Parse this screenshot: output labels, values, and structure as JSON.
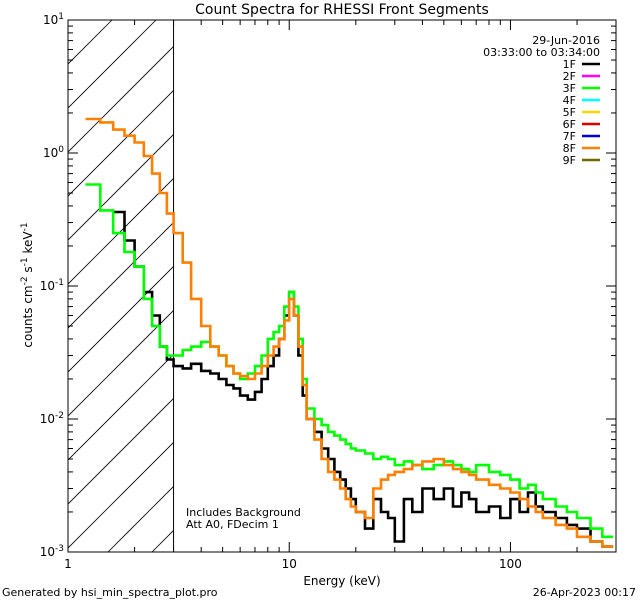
{
  "chart_data": {
    "type": "line",
    "title": "Count Spectra for RHESSI Front Segments",
    "xlabel": "Energy (keV)",
    "ylabel_base": "counts cm",
    "ylabel_exp1": "-2",
    "ylabel_mid": " s",
    "ylabel_exp2": "-1",
    "ylabel_unit": " keV",
    "ylabel_exp3": "-1",
    "xscale": "log",
    "yscale": "log",
    "xlim": [
      1,
      300
    ],
    "ylim": [
      0.001,
      10
    ],
    "x_major_ticks": [
      1,
      10,
      100
    ],
    "y_major_ticks": [
      0.001,
      0.01,
      0.1,
      1,
      10
    ],
    "x_tick_labels": [
      "1",
      "10",
      "100"
    ],
    "y_tick_base": [
      "10",
      "10",
      "10",
      "10",
      "10"
    ],
    "y_tick_exp": [
      "-3",
      "-2",
      "-1",
      "0",
      "1"
    ],
    "shaded_region_x": [
      1,
      3
    ],
    "info": {
      "date": "29-Jun-2016",
      "time_range": "03:33:00 to 03:34:00",
      "note1": "Includes Background",
      "note2": "Att A0, FDecim 1"
    },
    "legend": [
      {
        "name": "1F",
        "color": "#000000"
      },
      {
        "name": "2F",
        "color": "#ff00ff"
      },
      {
        "name": "3F",
        "color": "#00ff00"
      },
      {
        "name": "4F",
        "color": "#00ffff"
      },
      {
        "name": "5F",
        "color": "#ffd700"
      },
      {
        "name": "6F",
        "color": "#dd0000"
      },
      {
        "name": "7F",
        "color": "#0000dd"
      },
      {
        "name": "8F",
        "color": "#ff8000"
      },
      {
        "name": "9F",
        "color": "#6b6b00"
      }
    ],
    "series": [
      {
        "name": "1F",
        "color": "#000000",
        "x": [
          1.6,
          1.8,
          2.0,
          2.2,
          2.4,
          2.6,
          2.8,
          3.0,
          3.3,
          3.6,
          4.0,
          4.4,
          4.8,
          5.2,
          5.6,
          6.0,
          6.5,
          7.0,
          7.5,
          8.0,
          8.5,
          9.0,
          9.5,
          10.0,
          10.5,
          11.0,
          11.5,
          12.0,
          13.0,
          14.0,
          15.0,
          16.0,
          17.0,
          18.0,
          19.0,
          20.0,
          22.0,
          24.0,
          26.0,
          28.0,
          30.0,
          33.0,
          36.0,
          40.0,
          45.0,
          50.0,
          55.0,
          60.0,
          65.0,
          70.0,
          80.0,
          90.0,
          100.0,
          110.0,
          120.0,
          130.0,
          140.0,
          160.0,
          180.0,
          200.0,
          230.0,
          260.0
        ],
        "values": [
          0.36,
          0.22,
          0.14,
          0.09,
          0.06,
          0.035,
          0.028,
          0.025,
          0.024,
          0.026,
          0.023,
          0.022,
          0.02,
          0.018,
          0.017,
          0.015,
          0.014,
          0.016,
          0.02,
          0.025,
          0.03,
          0.04,
          0.06,
          0.09,
          0.06,
          0.03,
          0.015,
          0.01,
          0.008,
          0.006,
          0.005,
          0.004,
          0.0035,
          0.003,
          0.0025,
          0.002,
          0.0015,
          0.0025,
          0.002,
          0.0018,
          0.0012,
          0.0025,
          0.002,
          0.003,
          0.0025,
          0.003,
          0.0022,
          0.0028,
          0.0025,
          0.002,
          0.0022,
          0.0018,
          0.0025,
          0.002,
          0.0028,
          0.0022,
          0.002,
          0.0018,
          0.0016,
          0.0015,
          0.0012,
          0.0011
        ]
      },
      {
        "name": "3F",
        "color": "#00ff00",
        "x": [
          1.2,
          1.4,
          1.6,
          1.8,
          2.0,
          2.2,
          2.4,
          2.6,
          2.8,
          3.0,
          3.3,
          3.6,
          4.0,
          4.4,
          4.8,
          5.2,
          5.6,
          6.0,
          6.5,
          7.0,
          7.5,
          8.0,
          8.5,
          9.0,
          9.5,
          10.0,
          10.5,
          11.0,
          11.5,
          12.0,
          13.0,
          14.0,
          15.0,
          16.0,
          17.0,
          18.0,
          19.0,
          20.0,
          22.0,
          24.0,
          26.0,
          28.0,
          30.0,
          33.0,
          36.0,
          40.0,
          45.0,
          50.0,
          55.0,
          60.0,
          65.0,
          70.0,
          80.0,
          90.0,
          100.0,
          110.0,
          120.0,
          130.0,
          140.0,
          160.0,
          180.0,
          200.0,
          230.0,
          260.0
        ],
        "values": [
          0.58,
          0.37,
          0.25,
          0.18,
          0.14,
          0.08,
          0.05,
          0.035,
          0.03,
          0.03,
          0.033,
          0.035,
          0.038,
          0.035,
          0.03,
          0.025,
          0.022,
          0.02,
          0.022,
          0.025,
          0.03,
          0.04,
          0.045,
          0.05,
          0.07,
          0.09,
          0.07,
          0.04,
          0.02,
          0.012,
          0.01,
          0.009,
          0.008,
          0.0075,
          0.007,
          0.0065,
          0.006,
          0.0058,
          0.0055,
          0.005,
          0.0052,
          0.005,
          0.0045,
          0.0048,
          0.0045,
          0.0042,
          0.0045,
          0.0048,
          0.0045,
          0.0042,
          0.004,
          0.0045,
          0.004,
          0.0038,
          0.0035,
          0.003,
          0.0032,
          0.0028,
          0.0025,
          0.0022,
          0.002,
          0.0018,
          0.0015,
          0.0013
        ]
      },
      {
        "name": "8F",
        "color": "#ff8000",
        "x": [
          1.2,
          1.4,
          1.6,
          1.8,
          2.0,
          2.2,
          2.4,
          2.6,
          2.8,
          3.0,
          3.3,
          3.6,
          4.0,
          4.4,
          4.8,
          5.2,
          5.6,
          6.0,
          6.5,
          7.0,
          7.5,
          8.0,
          8.5,
          9.0,
          9.5,
          10.0,
          10.5,
          11.0,
          11.5,
          12.0,
          13.0,
          14.0,
          15.0,
          16.0,
          17.0,
          18.0,
          19.0,
          20.0,
          22.0,
          24.0,
          26.0,
          28.0,
          30.0,
          33.0,
          36.0,
          40.0,
          45.0,
          50.0,
          55.0,
          60.0,
          65.0,
          70.0,
          80.0,
          90.0,
          100.0,
          110.0,
          120.0,
          130.0,
          140.0,
          160.0,
          180.0,
          200.0,
          230.0,
          260.0
        ],
        "values": [
          1.8,
          1.7,
          1.5,
          1.35,
          1.2,
          0.95,
          0.7,
          0.5,
          0.35,
          0.25,
          0.15,
          0.08,
          0.05,
          0.035,
          0.03,
          0.025,
          0.022,
          0.021,
          0.02,
          0.022,
          0.025,
          0.03,
          0.035,
          0.04,
          0.055,
          0.08,
          0.06,
          0.035,
          0.018,
          0.01,
          0.007,
          0.005,
          0.004,
          0.0035,
          0.003,
          0.0025,
          0.0022,
          0.002,
          0.0018,
          0.003,
          0.0035,
          0.0038,
          0.004,
          0.0042,
          0.0045,
          0.0048,
          0.005,
          0.0045,
          0.0042,
          0.004,
          0.0038,
          0.0035,
          0.0032,
          0.003,
          0.0028,
          0.0025,
          0.0022,
          0.002,
          0.0018,
          0.0016,
          0.0015,
          0.0013,
          0.0012,
          0.0011
        ]
      }
    ]
  },
  "footer": {
    "generated_by": "Generated by hsi_min_spectra_plot.pro",
    "timestamp": "26-Apr-2023 00:17"
  }
}
